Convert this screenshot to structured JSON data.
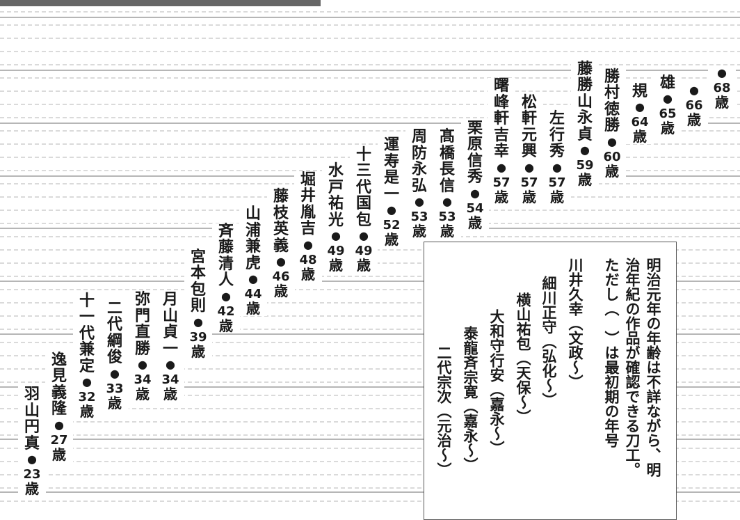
{
  "chart_data": {
    "type": "scatter",
    "unit": "歳",
    "points": [
      {
        "name": "羽山円真",
        "age": 23
      },
      {
        "name": "逸見義隆",
        "age": 27
      },
      {
        "name": "十一代兼定",
        "age": 32
      },
      {
        "name": "二代綱俊",
        "age": 33
      },
      {
        "name": "弥門直勝",
        "age": 34
      },
      {
        "name": "月山貞一",
        "age": 34
      },
      {
        "name": "宮本包則",
        "age": 39
      },
      {
        "name": "斉藤清人",
        "age": 42
      },
      {
        "name": "山浦兼虎",
        "age": 44
      },
      {
        "name": "藤枝英義",
        "age": 46
      },
      {
        "name": "堀井胤吉",
        "age": 48
      },
      {
        "name": "水戸祐光",
        "age": 49
      },
      {
        "name": "十三代国包",
        "age": 49
      },
      {
        "name": "運寿是一",
        "age": 52
      },
      {
        "name": "周防永弘",
        "age": 53
      },
      {
        "name": "髙橋長信",
        "age": 53
      },
      {
        "name": "栗原信秀",
        "age": 54
      },
      {
        "name": "曙峰軒吉幸",
        "age": 57
      },
      {
        "name": "松軒元興",
        "age": 57
      },
      {
        "name": "左行秀",
        "age": 57
      },
      {
        "name": "藤勝山永貞",
        "age": 59
      },
      {
        "name": "勝村徳勝",
        "age": 60
      },
      {
        "name": "規",
        "age": 64
      },
      {
        "name": "雄",
        "age": 65
      },
      {
        "name": "",
        "age": 66
      },
      {
        "name": "",
        "age": 68
      }
    ],
    "note": {
      "lines": [
        "明治元年の年齢は不詳ながら、明",
        "治年紀の作品が確認できる刀工。",
        "ただし（　）は最初期の年号"
      ],
      "entries": [
        "川井久幸（文政～）",
        "細川正守（弘化～）",
        "横山祐包（天保～）",
        "大和守行安（嘉永～）",
        "泰龍斉宗寛（嘉永～）",
        "二代宗次（元治～）"
      ]
    }
  }
}
